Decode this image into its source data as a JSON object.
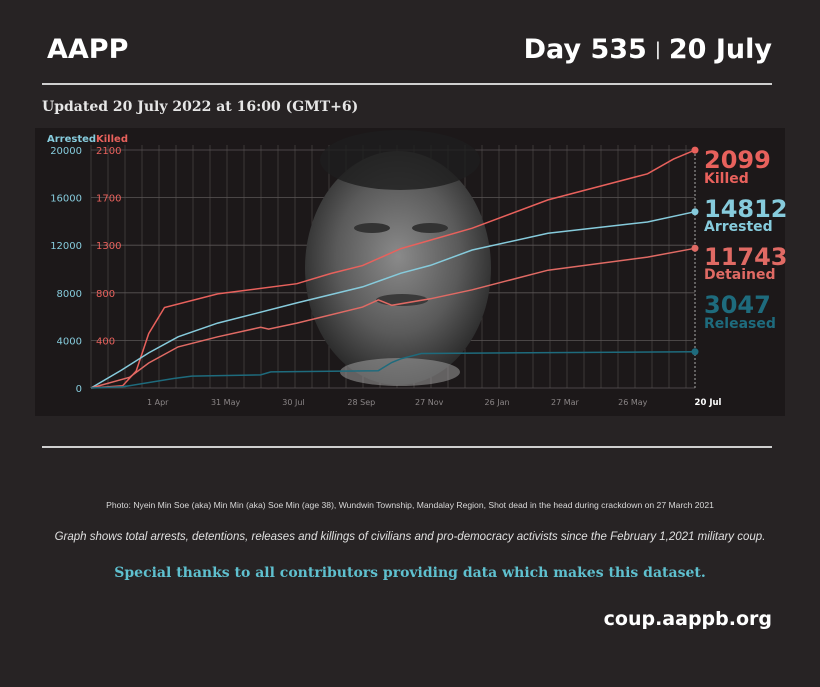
{
  "header": {
    "brand": "AAPP",
    "day": "Day 535",
    "separator": "|",
    "date": "20 July"
  },
  "updated": "Updated 20 July 2022 at 16:00 (GMT+6)",
  "colors": {
    "arrested": "#86cbdc",
    "killed": "#e8615c",
    "detained": "#e06a64",
    "released": "#1e6b7d",
    "background": "#272324"
  },
  "chart_data": {
    "type": "line",
    "left_axis_label": "Arrested",
    "right_axis_label": "Killed",
    "y_ticks_arrested": [
      "0",
      "4000",
      "8000",
      "12000",
      "16000",
      "20000"
    ],
    "y_ticks_killed": [
      "400",
      "800",
      "1300",
      "1700",
      "2100"
    ],
    "ylim_arrested": [
      0,
      20000
    ],
    "ylim_killed": [
      0,
      2100
    ],
    "x_ticks": [
      "1 Apr",
      "31 May",
      "30 Jul",
      "28 Sep",
      "27 Nov",
      "26 Jan",
      "27 Mar",
      "26 May"
    ],
    "x_end_label": "20 Jul",
    "xlim": [
      "2021-02-01",
      "2022-07-20"
    ],
    "grid": true,
    "series": [
      {
        "name": "Killed",
        "axis": "killed",
        "total": "2099",
        "points": [
          [
            "2021-02-01",
            0
          ],
          [
            "2021-03-01",
            20
          ],
          [
            "2021-03-13",
            150
          ],
          [
            "2021-03-24",
            480
          ],
          [
            "2021-04-07",
            710
          ],
          [
            "2021-05-24",
            830
          ],
          [
            "2021-08-02",
            920
          ],
          [
            "2021-09-01",
            1010
          ],
          [
            "2021-09-29",
            1080
          ],
          [
            "2021-11-02",
            1230
          ],
          [
            "2022-01-04",
            1410
          ],
          [
            "2022-03-12",
            1660
          ],
          [
            "2022-06-08",
            1890
          ],
          [
            "2022-07-01",
            2020
          ],
          [
            "2022-07-20",
            2099
          ]
        ]
      },
      {
        "name": "Arrested",
        "axis": "arrested",
        "total": "14812",
        "points": [
          [
            "2021-02-01",
            0
          ],
          [
            "2021-02-28",
            1500
          ],
          [
            "2021-03-24",
            2950
          ],
          [
            "2021-04-19",
            4300
          ],
          [
            "2021-05-24",
            5450
          ],
          [
            "2021-08-02",
            7150
          ],
          [
            "2021-09-29",
            8500
          ],
          [
            "2021-11-02",
            9650
          ],
          [
            "2021-11-28",
            10300
          ],
          [
            "2022-01-04",
            11600
          ],
          [
            "2022-03-12",
            13000
          ],
          [
            "2022-06-08",
            13950
          ],
          [
            "2022-07-20",
            14812
          ]
        ]
      },
      {
        "name": "Detained",
        "axis": "arrested",
        "total": "11743",
        "points": [
          [
            "2021-02-01",
            0
          ],
          [
            "2021-03-07",
            900
          ],
          [
            "2021-03-24",
            2100
          ],
          [
            "2021-04-19",
            3450
          ],
          [
            "2021-05-24",
            4300
          ],
          [
            "2021-07-01",
            5100
          ],
          [
            "2021-07-08",
            4950
          ],
          [
            "2021-08-02",
            5450
          ],
          [
            "2021-09-29",
            6800
          ],
          [
            "2021-10-13",
            7400
          ],
          [
            "2021-10-25",
            6950
          ],
          [
            "2021-11-28",
            7500
          ],
          [
            "2022-01-04",
            8250
          ],
          [
            "2022-03-12",
            9900
          ],
          [
            "2022-06-08",
            11000
          ],
          [
            "2022-07-20",
            11743
          ]
        ]
      },
      {
        "name": "Released",
        "axis": "arrested",
        "total": "3047",
        "points": [
          [
            "2021-02-01",
            0
          ],
          [
            "2021-03-01",
            100
          ],
          [
            "2021-04-15",
            800
          ],
          [
            "2021-05-01",
            1000
          ],
          [
            "2021-07-01",
            1100
          ],
          [
            "2021-07-10",
            1350
          ],
          [
            "2021-10-13",
            1450
          ],
          [
            "2021-10-25",
            2150
          ],
          [
            "2021-11-02",
            2450
          ],
          [
            "2021-11-20",
            2900
          ],
          [
            "2022-07-20",
            3047
          ]
        ]
      }
    ]
  },
  "footer": {
    "photo_caption": "Photo:  Nyein Min Soe (aka) Min Min (aka) Soe Min (age 38), Wundwin Township, Mandalay Region, Shot dead in the head during crackdown on 27 March 2021",
    "graph_caption": "Graph shows total arrests, detentions, releases and killings of civilians and pro-democracy activists since the February 1,2021 military coup.",
    "thanks": "Special thanks to all contributors providing data which makes this dataset.",
    "url": "coup.aappb.org"
  }
}
